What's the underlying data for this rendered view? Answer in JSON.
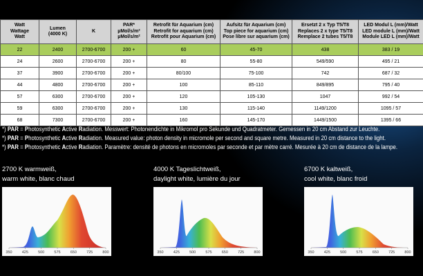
{
  "table": {
    "header": [
      [
        "Watt",
        "Wattage",
        "Watt"
      ],
      [
        "Lumen",
        "(4000 K)"
      ],
      [
        "K"
      ],
      [
        "PAR*",
        "µMol/s/m²",
        "µMol/s/m²"
      ],
      [
        "Retrofit für Aquarium (cm)",
        "Retrofit for aquarium (cm)",
        "Retrofit pour Aquarium (cm)"
      ],
      [
        "Aufsitz für Aquarium (cm)",
        "Top piece for aquarium (cm)",
        "Pose libre sur aquarium (cm)"
      ],
      [
        "Ersetzt 2 x Typ T5/T8",
        "Replaces 2 x type T5/T8",
        "Remplace 2 tubes T5/T8"
      ],
      [
        "LED Modul L (mm)/Watt",
        "LED module L (mm)/Watt",
        "Module LED L (mm)/Watt"
      ]
    ],
    "rows": [
      [
        "22",
        "2400",
        "2700-6700",
        "200 +",
        "60",
        "45-70",
        "438",
        "383 / 19"
      ],
      [
        "24",
        "2600",
        "2700-6700",
        "200 +",
        "80",
        "55-80",
        "549/590",
        "495 / 21"
      ],
      [
        "37",
        "3900",
        "2700-6700",
        "200 +",
        "80/100",
        "75-100",
        "742",
        "687 / 32"
      ],
      [
        "44",
        "4800",
        "2700-6700",
        "200 +",
        "100",
        "85-110",
        "849/895",
        "795 / 40"
      ],
      [
        "57",
        "6300",
        "2700-6700",
        "200 +",
        "120",
        "105-130",
        "1047",
        "992 / 54"
      ],
      [
        "59",
        "6300",
        "2700-6700",
        "200 +",
        "130",
        "115-140",
        "1149/1200",
        "1095 / 57"
      ],
      [
        "68",
        "7300",
        "2700-6700",
        "200 +",
        "160",
        "145-170",
        "1449/1500",
        "1395 / 66"
      ]
    ],
    "highlight_row": 0
  },
  "notes": [
    {
      "segments": [
        {
          "text": "*) ",
          "bold": false
        },
        {
          "text": "PAR",
          "bold": true
        },
        {
          "text": " = ",
          "bold": false
        },
        {
          "text": "P",
          "bold": true
        },
        {
          "text": "hotosynthetic ",
          "bold": false
        },
        {
          "text": "A",
          "bold": true
        },
        {
          "text": "ctive ",
          "bold": false
        },
        {
          "text": "R",
          "bold": true
        },
        {
          "text": "adiation. Messwert: Photonendichte in Mikromol pro Sekunde und Quadratmeter. Gemessen in 20 cm Abstand zur Leuchte.",
          "bold": false
        }
      ]
    },
    {
      "segments": [
        {
          "text": "*) ",
          "bold": false
        },
        {
          "text": "PAR",
          "bold": true
        },
        {
          "text": " = ",
          "bold": false
        },
        {
          "text": "P",
          "bold": true
        },
        {
          "text": "hotosynthetic ",
          "bold": false
        },
        {
          "text": "A",
          "bold": true
        },
        {
          "text": "ctive ",
          "bold": false
        },
        {
          "text": "R",
          "bold": true
        },
        {
          "text": "adiation. Measured value: photon density in micromole per second and square metre. Measured in 20 cm distance to the light.",
          "bold": false
        }
      ]
    },
    {
      "segments": [
        {
          "text": "*) ",
          "bold": false
        },
        {
          "text": "PAR",
          "bold": true
        },
        {
          "text": " = ",
          "bold": false
        },
        {
          "text": "P",
          "bold": true
        },
        {
          "text": "hotosynthetic ",
          "bold": false
        },
        {
          "text": "A",
          "bold": true
        },
        {
          "text": "ctive ",
          "bold": false
        },
        {
          "text": "R",
          "bold": true
        },
        {
          "text": "adiation. Paramètre: densité de photons en micromoles par seconde et par mètre carré. Mesurée à 20 cm de distance de la lampe.",
          "bold": false
        }
      ]
    }
  ],
  "spectra": [
    {
      "label_lines": [
        "2700 K warmweiß,",
        "warm white, blanc chaud"
      ],
      "xlim": [
        350,
        800
      ],
      "xticks": [
        350,
        425,
        500,
        575,
        650,
        725,
        800
      ]
    },
    {
      "label_lines": [
        "4000 K Tageslichtweiß,",
        "daylight white, lumière du jour"
      ],
      "xlim": [
        350,
        800
      ],
      "xticks": [
        350,
        425,
        500,
        575,
        650,
        725,
        800
      ]
    },
    {
      "label_lines": [
        "6700 K kaltweiß,",
        "cool white, blanc froid"
      ],
      "xlim": [
        350,
        800
      ],
      "xticks": [
        350,
        425,
        500,
        575,
        650,
        725,
        800
      ]
    }
  ]
}
